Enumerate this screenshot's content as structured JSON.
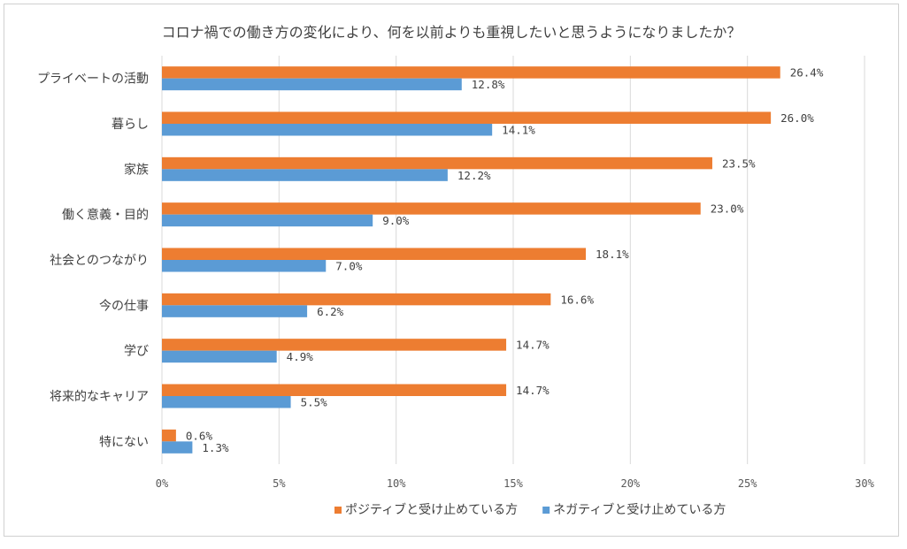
{
  "chart_data": {
    "type": "bar",
    "orientation": "horizontal",
    "title": "コロナ禍での働き方の変化により、何を以前よりも重視したいと思うようになりましたか？",
    "categories": [
      "プライベートの活動",
      "暮らし",
      "家族",
      "働く意義・目的",
      "社会とのつながり",
      "今の仕事",
      "学び",
      "将来的なキャリア",
      "特にない"
    ],
    "series": [
      {
        "name": "ポジティブと受け止めている方",
        "color": "#ED7D31",
        "values": [
          26.4,
          26.0,
          23.5,
          23.0,
          18.1,
          16.6,
          14.7,
          14.7,
          0.6
        ]
      },
      {
        "name": "ネガティブと受け止めている方",
        "color": "#5B9BD5",
        "values": [
          12.8,
          14.1,
          12.2,
          9.0,
          7.0,
          6.2,
          4.9,
          5.5,
          1.3
        ]
      }
    ],
    "xlim": [
      0,
      30
    ],
    "xticks": [
      0,
      5,
      10,
      15,
      20,
      25,
      30
    ],
    "tick_suffix": "%",
    "grid": true,
    "legend": "bottom"
  }
}
